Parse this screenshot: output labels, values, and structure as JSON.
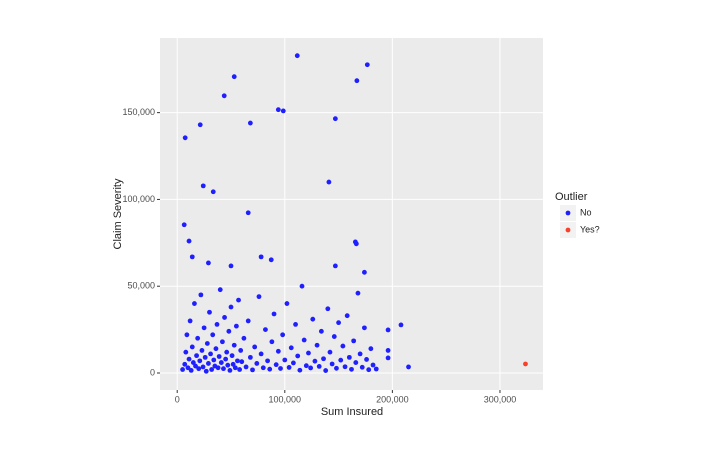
{
  "chart_data": {
    "type": "scatter",
    "x_label": "Sum Insured",
    "y_label": "Claim Severity",
    "legend_title": "Outlier",
    "legend": "right",
    "grid": true,
    "xlim": [
      -16000,
      340000
    ],
    "ylim": [
      -9800,
      193000
    ],
    "xticks": [
      0,
      {
        "value": 100000,
        "label": "100,000"
      },
      {
        "value": 200000,
        "label": "200,000"
      },
      {
        "value": 300000,
        "label": "300,000"
      }
    ],
    "yticks": [
      0,
      {
        "value": 50000,
        "label": "50,000"
      },
      {
        "value": 100000,
        "label": "100,000"
      },
      {
        "value": 150000,
        "label": "150,000"
      }
    ],
    "series": [
      {
        "name": "No",
        "color": "#1f1fff",
        "x": [
          111600,
          176700,
          53000,
          167000,
          43700,
          94000,
          98600,
          147000,
          68000,
          21400,
          7400,
          24200,
          33500,
          141000,
          66000,
          6500,
          11000,
          165600,
          166500,
          78000,
          87400,
          14000,
          50000,
          147000,
          29000,
          174000,
          196000,
          208000,
          215000,
          196000,
          196000,
          5000,
          7000,
          8000,
          9000,
          10000,
          11000,
          12000,
          13000,
          14000,
          15000,
          16000,
          17000,
          18000,
          19000,
          20000,
          21000,
          22000,
          23000,
          24000,
          25000,
          26000,
          27000,
          28000,
          29000,
          30000,
          31000,
          32000,
          33000,
          34000,
          35000,
          36000,
          37000,
          38000,
          39000,
          40000,
          41000,
          42000,
          43000,
          44000,
          45000,
          46000,
          47000,
          48000,
          49000,
          50000,
          51000,
          52000,
          53000,
          54000,
          55000,
          56000,
          57000,
          58000,
          59000,
          60000,
          62000,
          64000,
          66000,
          68000,
          70000,
          72000,
          74000,
          76000,
          78000,
          80000,
          82000,
          84000,
          86000,
          88000,
          90000,
          92000,
          94000,
          96000,
          98000,
          100000,
          102000,
          104000,
          106000,
          108000,
          110000,
          112000,
          114000,
          116000,
          118000,
          120000,
          122000,
          124000,
          126000,
          128000,
          130000,
          132000,
          134000,
          136000,
          138000,
          140000,
          142000,
          144000,
          146000,
          148000,
          150000,
          152000,
          154000,
          156000,
          158000,
          160000,
          162000,
          164000,
          166000,
          168000,
          170000,
          172000,
          174000,
          176000,
          178000,
          180000,
          182000,
          185000
        ],
        "values": [
          182800,
          177600,
          170700,
          168400,
          159700,
          151700,
          151000,
          146500,
          144000,
          143000,
          135500,
          107800,
          104400,
          110000,
          92300,
          85400,
          76000,
          75500,
          74400,
          66900,
          65200,
          66900,
          61700,
          61700,
          63400,
          58000,
          24800,
          27700,
          3500,
          8700,
          13000,
          2000,
          5000,
          12000,
          22000,
          3000,
          8000,
          30000,
          1500,
          15000,
          6000,
          40000,
          4000,
          10000,
          20000,
          2500,
          7000,
          45000,
          13000,
          3500,
          26000,
          9000,
          1000,
          17000,
          5500,
          35000,
          11000,
          2000,
          22000,
          7500,
          4000,
          14000,
          28000,
          3000,
          9500,
          48000,
          6000,
          18000,
          2500,
          32000,
          8000,
          12000,
          4500,
          24000,
          1500,
          38000,
          10000,
          5000,
          16000,
          3000,
          27000,
          7000,
          42000,
          2000,
          13000,
          6500,
          20000,
          3500,
          30000,
          9000,
          1800,
          15000,
          5500,
          44000,
          11000,
          3000,
          25000,
          7000,
          2200,
          18000,
          34000,
          4800,
          12500,
          2600,
          22000,
          7500,
          40000,
          3200,
          14500,
          5800,
          28000,
          9800,
          1600,
          50000,
          19000,
          4200,
          11500,
          2900,
          31000,
          6800,
          16000,
          3800,
          24000,
          8200,
          1400,
          37000,
          12000,
          5200,
          21000,
          2700,
          29000,
          7400,
          15500,
          3600,
          33000,
          9000,
          2100,
          18500,
          6000,
          46000,
          11000,
          3300,
          26000,
          7800,
          1900,
          14000,
          4600,
          2300
        ]
      },
      {
        "name": "Yes?",
        "color": "#f8402a",
        "x": [
          323700
        ],
        "values": [
          5200
        ]
      }
    ]
  }
}
